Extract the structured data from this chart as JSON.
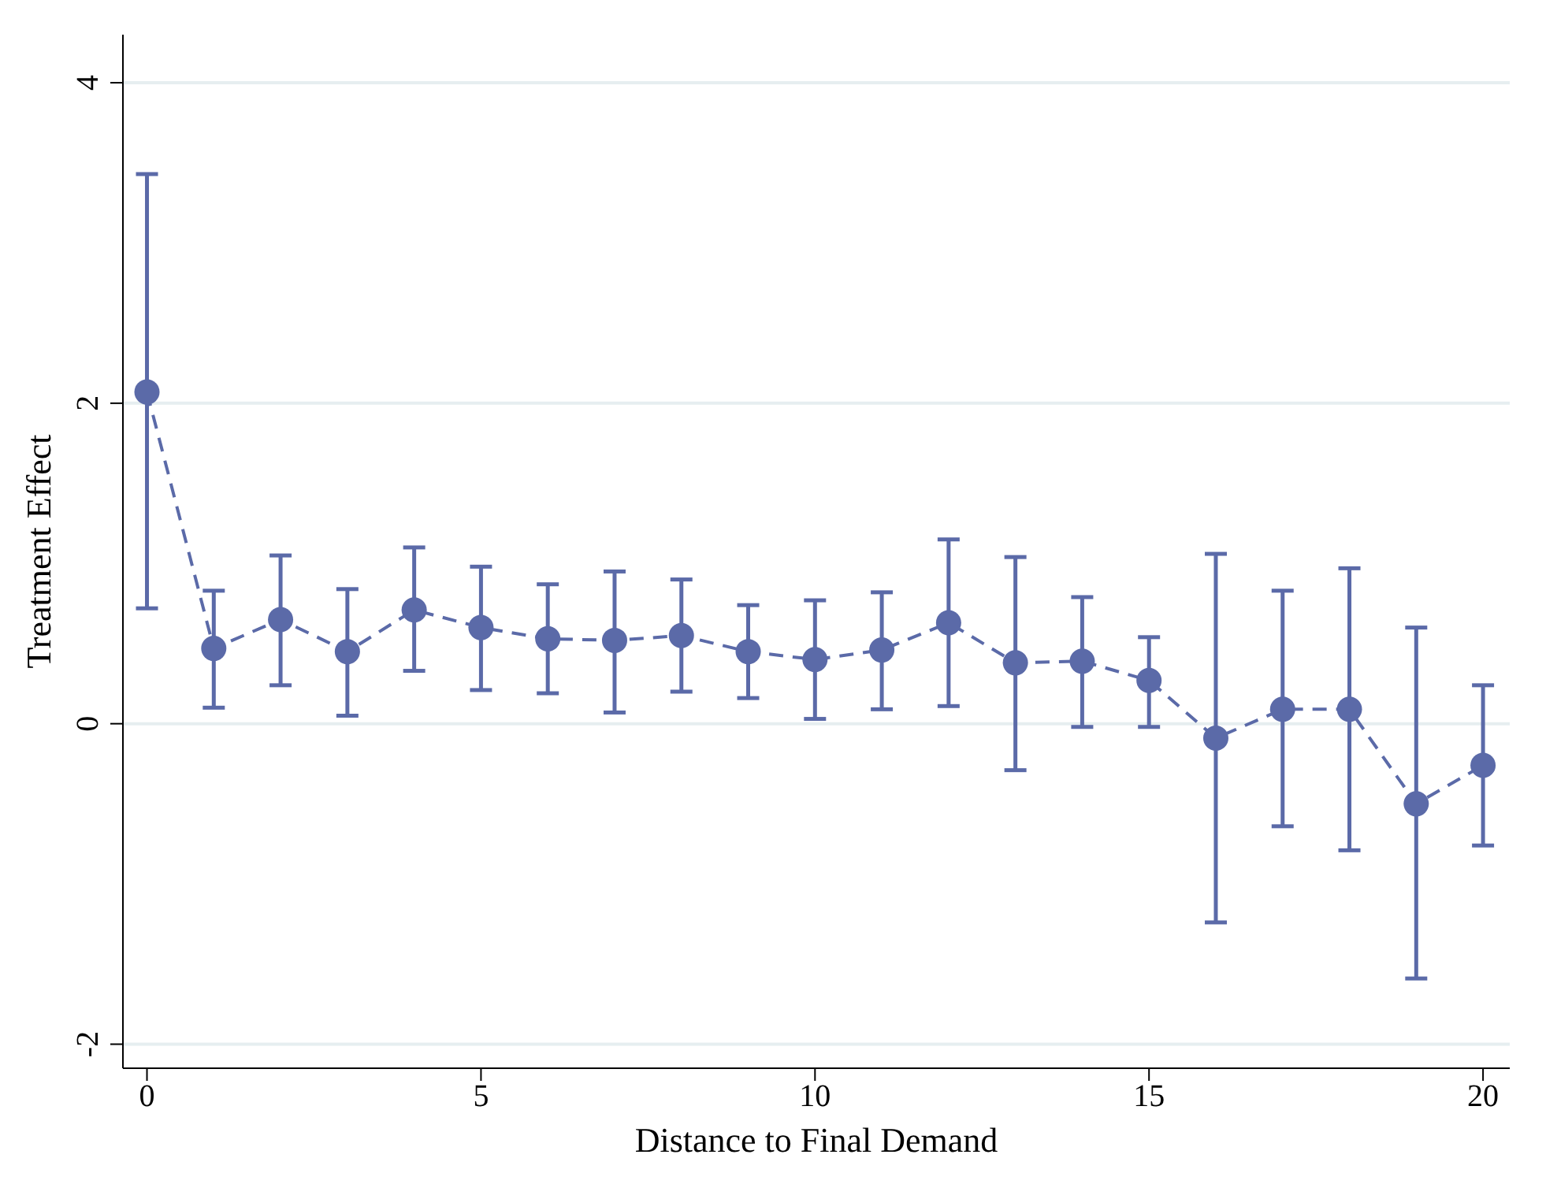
{
  "chart_data": {
    "type": "line",
    "xlabel": "Distance to Final Demand",
    "ylabel": "Treatment Effect",
    "x": [
      0,
      1,
      2,
      3,
      4,
      5,
      6,
      7,
      8,
      9,
      10,
      11,
      12,
      13,
      14,
      15,
      16,
      17,
      18,
      19,
      20
    ],
    "series": [
      {
        "color": "#5b6aa8",
        "values": [
          2.07,
          0.47,
          0.65,
          0.45,
          0.71,
          0.6,
          0.53,
          0.52,
          0.55,
          0.45,
          0.4,
          0.46,
          0.63,
          0.38,
          0.39,
          0.27,
          -0.09,
          0.09,
          0.09,
          -0.5,
          -0.26
        ],
        "errors": [
          [
            0.72,
            3.43
          ],
          [
            0.1,
            0.83
          ],
          [
            0.24,
            1.05
          ],
          [
            0.05,
            0.84
          ],
          [
            0.33,
            1.1
          ],
          [
            0.21,
            0.98
          ],
          [
            0.19,
            0.87
          ],
          [
            0.07,
            0.95
          ],
          [
            0.2,
            0.9
          ],
          [
            0.16,
            0.74
          ],
          [
            0.03,
            0.77
          ],
          [
            0.09,
            0.82
          ],
          [
            0.11,
            1.15
          ],
          [
            -0.29,
            1.04
          ],
          [
            -0.02,
            0.79
          ],
          [
            -0.02,
            0.54
          ],
          [
            -1.24,
            1.06
          ],
          [
            -0.64,
            0.83
          ],
          [
            -0.79,
            0.97
          ],
          [
            -1.59,
            0.6
          ],
          [
            -0.76,
            0.24
          ]
        ]
      }
    ],
    "xlim": [
      -0.36,
      20.4
    ],
    "xticks": [
      0,
      5,
      10,
      15,
      20
    ],
    "ylim": [
      -2.15,
      4.3
    ],
    "yticks": [
      -2,
      0,
      2,
      4
    ],
    "grid": "y",
    "marker": "circle",
    "line_style": "dashed"
  }
}
